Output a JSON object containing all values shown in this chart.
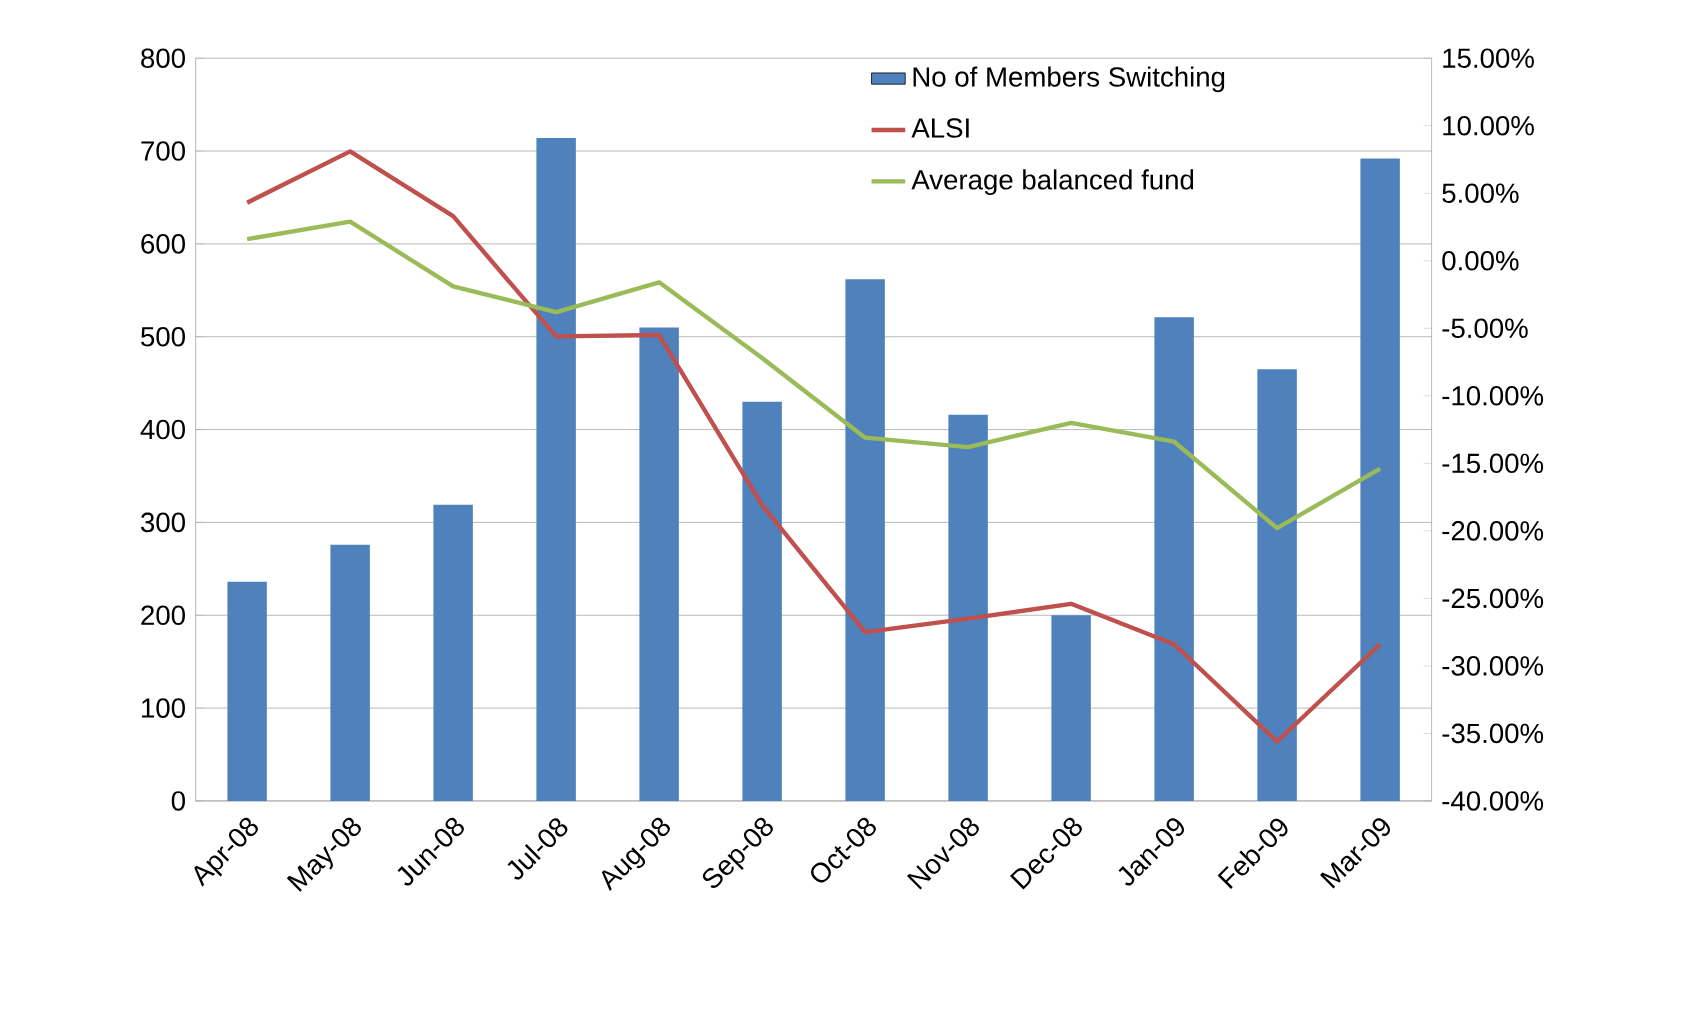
{
  "chart_data": {
    "type": "bar",
    "categories": [
      "Apr-08",
      "May-08",
      "Jun-08",
      "Jul-08",
      "Aug-08",
      "Sep-08",
      "Oct-08",
      "Nov-08",
      "Dec-08",
      "Jan-09",
      "Feb-09",
      "Mar-09"
    ],
    "series": [
      {
        "name": "No of Members Switching",
        "color": "#4f81bd",
        "values": [
          236,
          276,
          319,
          714,
          510,
          430,
          562,
          416,
          200,
          521,
          465,
          692
        ]
      },
      {
        "name": "ALSI",
        "type": "line",
        "axis": "y2",
        "color": "#c0504d",
        "values": [
          4.3,
          8.1,
          3.3,
          -5.6,
          -5.5,
          -18.1,
          -27.5,
          -26.5,
          -25.4,
          -28.4,
          -35.6,
          -28.4
        ]
      },
      {
        "name": "Average balanced fund",
        "type": "line",
        "axis": "y2",
        "color": "#9bbb59",
        "values": [
          1.6,
          2.9,
          -1.9,
          -3.8,
          -1.6,
          -7.2,
          -13.1,
          -13.8,
          -12.0,
          -13.4,
          -19.8,
          -15.4
        ]
      }
    ],
    "ylim": [
      0,
      800
    ],
    "yticks": [
      0,
      100,
      200,
      300,
      400,
      500,
      600,
      700,
      800
    ],
    "y2lim": [
      -40,
      15
    ],
    "y2ticks": [
      {
        "value": -40,
        "label": "-40.00%"
      },
      {
        "value": -35,
        "label": "-35.00%"
      },
      {
        "value": -30,
        "label": "-30.00%"
      },
      {
        "value": -25,
        "label": "-25.00%"
      },
      {
        "value": -20,
        "label": "-20.00%"
      },
      {
        "value": -15,
        "label": "-15.00%"
      },
      {
        "value": -10,
        "label": "-10.00%"
      },
      {
        "value": -5,
        "label": "-5.00%"
      },
      {
        "value": 0,
        "label": "0.00%"
      },
      {
        "value": 5,
        "label": "5.00%"
      },
      {
        "value": 10,
        "label": "10.00%"
      },
      {
        "value": 15,
        "label": "15.00%"
      }
    ],
    "grid": "y",
    "legend": "top"
  }
}
